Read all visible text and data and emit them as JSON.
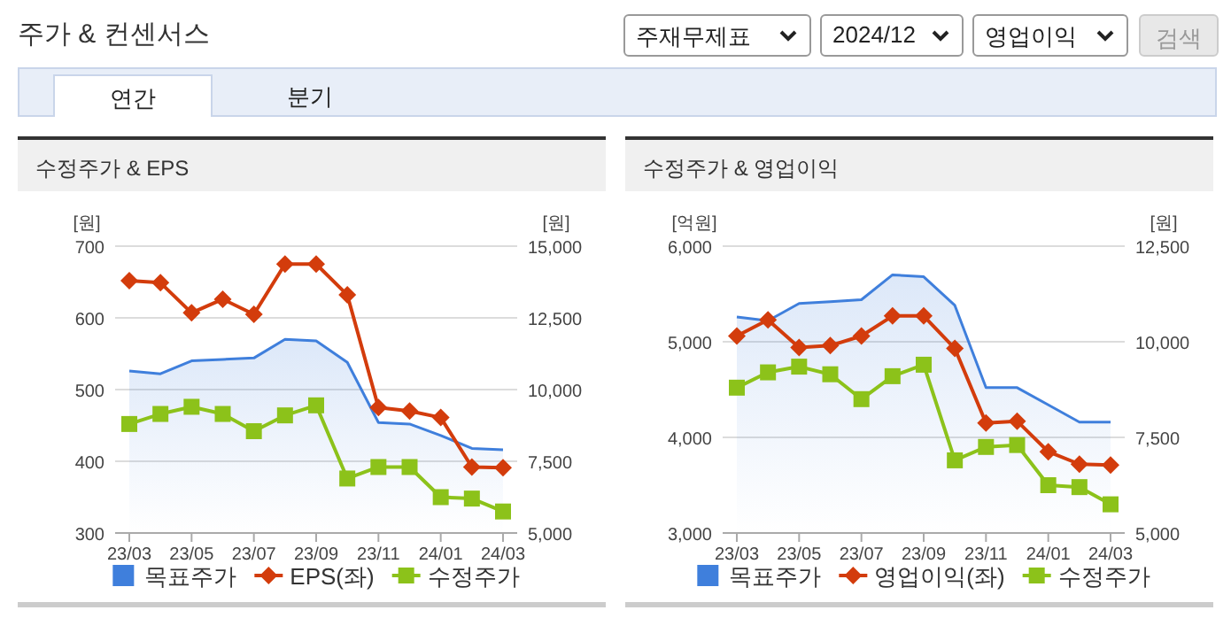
{
  "chart_data": [
    {
      "type": "other",
      "title": "주가 & 컨센서스",
      "annotations": [
        "주재무제표",
        "2024/12",
        "영업이익",
        "검색",
        "연간",
        "분기"
      ]
    },
    {
      "type": "line",
      "title": "수정주가 & EPS",
      "ylabel": "[원]",
      "y2label": "[원]",
      "categories": [
        "23/03",
        null,
        "23/05",
        null,
        "23/07",
        null,
        "23/09",
        null,
        "23/11",
        null,
        "24/01",
        null,
        "24/03"
      ],
      "ylim": [
        300,
        700
      ],
      "yticks": [
        300,
        400,
        500,
        600,
        700
      ],
      "y2lim": [
        5000,
        15000
      ],
      "y2ticks": [
        {
          "value": 5000,
          "label": "5,000"
        },
        {
          "value": 7500,
          "label": "7,500"
        },
        {
          "value": 10000,
          "label": "10,000"
        },
        {
          "value": 12500,
          "label": "12,500"
        },
        {
          "value": 15000,
          "label": "15,000"
        }
      ],
      "grid": "y",
      "legend": "bottom",
      "series": [
        {
          "name": "목표주가",
          "type": "area",
          "axis": "y2",
          "marker": "none",
          "color": "#3f7fdc",
          "values": [
            10650,
            10550,
            11000,
            11050,
            11100,
            11750,
            11700,
            10950,
            8850,
            8800,
            8400,
            7950,
            7900
          ]
        },
        {
          "name": "EPS(좌)",
          "type": "line",
          "marker": "diamond",
          "color": "#d33c0c",
          "values": [
            652,
            649,
            607,
            626,
            605,
            675,
            675,
            632,
            475,
            470,
            461,
            392,
            391
          ]
        },
        {
          "name": "수정주가",
          "type": "line",
          "axis": "y2",
          "marker": "square",
          "color": "#8cc21a",
          "values": [
            8800,
            9150,
            9400,
            9150,
            8550,
            9100,
            9450,
            6900,
            7300,
            7300,
            6250,
            6200,
            5750
          ]
        }
      ]
    },
    {
      "type": "line",
      "title": "수정주가 & 영업이익",
      "ylabel": "[억원]",
      "y2label": "[원]",
      "categories": [
        "23/03",
        null,
        "23/05",
        null,
        "23/07",
        null,
        "23/09",
        null,
        "23/11",
        null,
        "24/01",
        null,
        "24/03"
      ],
      "ylim": [
        3000,
        6000
      ],
      "yticks": [
        {
          "value": 3000,
          "label": "3,000"
        },
        {
          "value": 4000,
          "label": "4,000"
        },
        {
          "value": 5000,
          "label": "5,000"
        },
        {
          "value": 6000,
          "label": "6,000"
        }
      ],
      "y2lim": [
        5000,
        12500
      ],
      "y2ticks": [
        {
          "value": 5000,
          "label": "5,000"
        },
        {
          "value": 7500,
          "label": "7,500"
        },
        {
          "value": 10000,
          "label": "10,000"
        },
        {
          "value": 12500,
          "label": "12,500"
        }
      ],
      "grid": "y",
      "legend": "bottom",
      "series": [
        {
          "name": "목표주가",
          "type": "area",
          "axis": "y2",
          "marker": "none",
          "color": "#3f7fdc",
          "values": [
            10650,
            10550,
            11000,
            11050,
            11100,
            11750,
            11700,
            10950,
            8800,
            8800,
            8350,
            7900,
            7900
          ]
        },
        {
          "name": "영업이익(좌)",
          "type": "line",
          "marker": "diamond",
          "color": "#d33c0c",
          "values": [
            5060,
            5230,
            4940,
            4960,
            5060,
            5270,
            5270,
            4930,
            4150,
            4170,
            3850,
            3720,
            3710
          ]
        },
        {
          "name": "수정주가",
          "type": "line",
          "axis": "y2",
          "marker": "square",
          "color": "#8cc21a",
          "values": [
            8800,
            9200,
            9350,
            9150,
            8500,
            9100,
            9400,
            6900,
            7250,
            7300,
            6250,
            6200,
            5750
          ]
        }
      ]
    }
  ]
}
